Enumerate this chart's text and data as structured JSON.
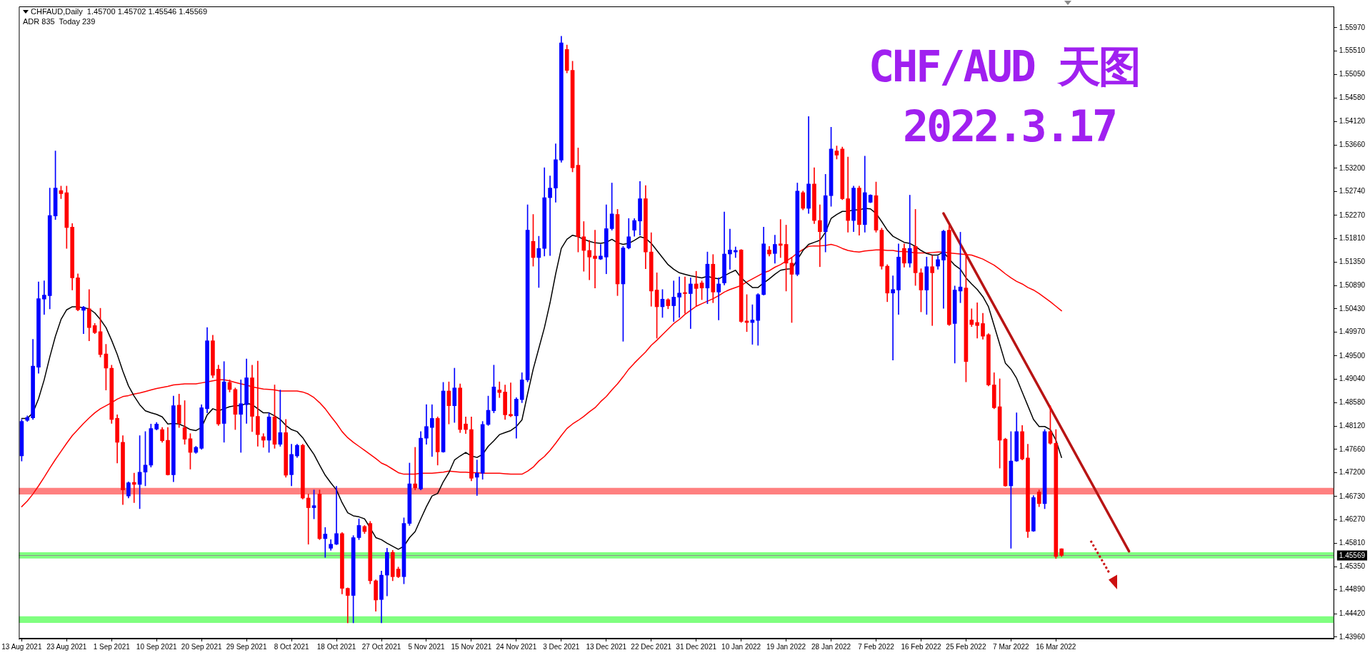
{
  "chart_data": {
    "type": "candlestick",
    "title": "CHF/AUD 天图",
    "subtitle": "2022.3.17",
    "annotations": [
      "CHFAUD,Daily  1.45700 1.45702 1.45546 1.45569",
      "ADR 835  Today 239"
    ],
    "categories": [
      "13 Aug 2021",
      null,
      null,
      null,
      null,
      null,
      null,
      null,
      "23 Aug 2021",
      null,
      null,
      null,
      null,
      null,
      null,
      null,
      "1 Sep 2021",
      null,
      null,
      null,
      null,
      null,
      null,
      null,
      "10 Sep 2021",
      null,
      null,
      null,
      null,
      null,
      null,
      null,
      "20 Sep 2021",
      null,
      null,
      null,
      null,
      null,
      null,
      null,
      "29 Sep 2021",
      null,
      null,
      null,
      null,
      null,
      null,
      null,
      "8 Oct 2021",
      null,
      null,
      null,
      null,
      null,
      null,
      null,
      "18 Oct 2021",
      null,
      null,
      null,
      null,
      null,
      null,
      null,
      "27 Oct 2021",
      null,
      null,
      null,
      null,
      null,
      null,
      null,
      "5 Nov 2021",
      null,
      null,
      null,
      null,
      null,
      null,
      null,
      "15 Nov 2021",
      null,
      null,
      null,
      null,
      null,
      null,
      null,
      "24 Nov 2021",
      null,
      null,
      null,
      null,
      null,
      null,
      null,
      "3 Dec 2021",
      null,
      null,
      null,
      null,
      null,
      null,
      null,
      "13 Dec 2021",
      null,
      null,
      null,
      null,
      null,
      null,
      null,
      "22 Dec 2021",
      null,
      null,
      null,
      null,
      null,
      null,
      null,
      "31 Dec 2021",
      null,
      null,
      null,
      null,
      null,
      null,
      null,
      "10 Jan 2022",
      null,
      null,
      null,
      null,
      null,
      null,
      null,
      "19 Jan 2022",
      null,
      null,
      null,
      null,
      null,
      null,
      null,
      "28 Jan 2022",
      null,
      null,
      null,
      null,
      null,
      null,
      null,
      "7 Feb 2022",
      null,
      null,
      null,
      null,
      null,
      null,
      null,
      "16 Feb 2022",
      null,
      null,
      null,
      null,
      null,
      null,
      null,
      "25 Feb 2022",
      null,
      null,
      null,
      null,
      null,
      null,
      null,
      "7 Mar 2022",
      null,
      null,
      null,
      null,
      null,
      null,
      null,
      "16 Mar 2022",
      null,
      null,
      null,
      null,
      null,
      null,
      null,
      null,
      null,
      null,
      null,
      null,
      null,
      null,
      null,
      null,
      null,
      null,
      null,
      null,
      null,
      null,
      null,
      null,
      null,
      null,
      null,
      null,
      null,
      null,
      null,
      null,
      null,
      null,
      null,
      null,
      null,
      null,
      null,
      null,
      null,
      null,
      null,
      null,
      null,
      null,
      null,
      null,
      null
    ],
    "ohlc": [
      [
        1.4753,
        1.4825,
        1.4743,
        1.4821
      ],
      [
        1.4823,
        1.4832,
        1.4821,
        1.4829
      ],
      [
        1.4828,
        1.4983,
        1.4825,
        1.493
      ],
      [
        1.4928,
        1.5096,
        1.4916,
        1.5063
      ],
      [
        1.5062,
        1.5098,
        1.5032,
        1.507
      ],
      [
        1.5069,
        1.5281,
        1.5043,
        1.5227
      ],
      [
        1.5226,
        1.5354,
        1.5219,
        1.5281
      ],
      [
        1.5276,
        1.5285,
        1.526,
        1.527
      ],
      [
        1.5272,
        1.5285,
        1.5162,
        1.5203
      ],
      [
        1.5204,
        1.5211,
        1.508,
        1.5104
      ],
      [
        1.5104,
        1.5112,
        1.5039,
        1.5041
      ],
      [
        1.504,
        1.5048,
        1.4994,
        1.5046
      ],
      [
        1.5043,
        1.5081,
        1.498,
        1.5006
      ],
      [
        1.501,
        1.5014,
        1.4994,
        1.4996
      ],
      [
        1.4998,
        1.5044,
        1.4948,
        1.4953
      ],
      [
        1.4954,
        1.4973,
        1.4883,
        1.4926
      ],
      [
        1.4926,
        1.4932,
        1.4817,
        1.4825
      ],
      [
        1.4827,
        1.4834,
        1.4739,
        1.478
      ],
      [
        1.478,
        1.4793,
        1.4657,
        1.4686
      ],
      [
        1.4674,
        1.4702,
        1.467,
        1.47
      ],
      [
        1.4701,
        1.4719,
        1.4661,
        1.4697
      ],
      [
        1.4697,
        1.4793,
        1.4649,
        1.4721
      ],
      [
        1.4721,
        1.4801,
        1.4694,
        1.4735
      ],
      [
        1.4735,
        1.4816,
        1.4731,
        1.4807
      ],
      [
        1.4806,
        1.4819,
        1.4804,
        1.4816
      ],
      [
        1.4805,
        1.4809,
        1.478,
        1.4783
      ],
      [
        1.4784,
        1.4809,
        1.4715,
        1.4716
      ],
      [
        1.4716,
        1.4871,
        1.4702,
        1.4852
      ],
      [
        1.4853,
        1.4875,
        1.4809,
        1.4817
      ],
      [
        1.4809,
        1.4862,
        1.4776,
        1.4786
      ],
      [
        1.4787,
        1.4797,
        1.4727,
        1.476
      ],
      [
        1.476,
        1.4772,
        1.4758,
        1.477
      ],
      [
        1.4768,
        1.4854,
        1.4766,
        1.4848
      ],
      [
        1.4846,
        1.5006,
        1.4838,
        1.498
      ],
      [
        1.498,
        1.4991,
        1.4907,
        1.4912
      ],
      [
        1.4924,
        1.4932,
        1.4813,
        1.4816
      ],
      [
        1.4817,
        1.4939,
        1.478,
        1.4899
      ],
      [
        1.4898,
        1.4903,
        1.4879,
        1.4884
      ],
      [
        1.4884,
        1.4887,
        1.4805,
        1.4835
      ],
      [
        1.4835,
        1.4903,
        1.476,
        1.4856
      ],
      [
        1.4854,
        1.4944,
        1.4817,
        1.4907
      ],
      [
        1.4907,
        1.4932,
        1.4801,
        1.4831
      ],
      [
        1.4831,
        1.494,
        1.4772,
        1.4795
      ],
      [
        1.4791,
        1.4797,
        1.477,
        1.4784
      ],
      [
        1.4784,
        1.4838,
        1.476,
        1.483
      ],
      [
        1.483,
        1.4893,
        1.4768,
        1.4776
      ],
      [
        1.4776,
        1.4883,
        1.4772,
        1.4799
      ],
      [
        1.4799,
        1.4825,
        1.4711,
        1.4715
      ],
      [
        1.4716,
        1.4776,
        1.4694,
        1.4756
      ],
      [
        1.4753,
        1.4776,
        1.475,
        1.4774
      ],
      [
        1.4774,
        1.4776,
        1.4668,
        1.467
      ],
      [
        1.467,
        1.4678,
        1.4579,
        1.4651
      ],
      [
        1.4651,
        1.4686,
        1.4629,
        1.4655
      ],
      [
        1.4678,
        1.4686,
        1.4588,
        1.459
      ],
      [
        1.459,
        1.4612,
        1.4553,
        1.4599
      ],
      [
        1.4571,
        1.4588,
        1.4567,
        1.4579
      ],
      [
        1.4579,
        1.4693,
        1.4578,
        1.46
      ],
      [
        1.46,
        1.4602,
        1.4481,
        1.4492
      ],
      [
        1.4492,
        1.4493,
        1.4424,
        1.4478
      ],
      [
        1.4478,
        1.4596,
        1.4424,
        1.4592
      ],
      [
        1.4592,
        1.4629,
        1.4588,
        1.4616
      ],
      [
        1.4614,
        1.4616,
        1.46,
        1.4604
      ],
      [
        1.462,
        1.4624,
        1.4501,
        1.4507
      ],
      [
        1.4507,
        1.4509,
        1.4447,
        1.4469
      ],
      [
        1.447,
        1.4526,
        1.4424,
        1.4518
      ],
      [
        1.4518,
        1.4571,
        1.4477,
        1.4563
      ],
      [
        1.4563,
        1.4567,
        1.4507,
        1.4515
      ],
      [
        1.453,
        1.4534,
        1.4513,
        1.4515
      ],
      [
        1.4515,
        1.4631,
        1.4501,
        1.462
      ],
      [
        1.462,
        1.4739,
        1.4616,
        1.4698
      ],
      [
        1.4698,
        1.477,
        1.4686,
        1.469
      ],
      [
        1.4688,
        1.4801,
        1.4686,
        1.4788
      ],
      [
        1.4788,
        1.4854,
        1.4776,
        1.4811
      ],
      [
        1.4809,
        1.4854,
        1.4752,
        1.4827
      ],
      [
        1.4827,
        1.483,
        1.4735,
        1.4761
      ],
      [
        1.4761,
        1.4898,
        1.476,
        1.4881
      ],
      [
        1.4881,
        1.4899,
        1.4816,
        1.4852
      ],
      [
        1.4852,
        1.4926,
        1.4819,
        1.4887
      ],
      [
        1.4887,
        1.4895,
        1.4799,
        1.4805
      ],
      [
        1.4816,
        1.483,
        1.4797,
        1.4805
      ],
      [
        1.4805,
        1.483,
        1.4704,
        1.4709
      ],
      [
        1.4711,
        1.4745,
        1.4675,
        1.4719
      ],
      [
        1.4719,
        1.4821,
        1.4707,
        1.4815
      ],
      [
        1.4815,
        1.4871,
        1.4813,
        1.4843
      ],
      [
        1.4842,
        1.4932,
        1.4838,
        1.4889
      ],
      [
        1.4883,
        1.4899,
        1.4868,
        1.4878
      ],
      [
        1.4879,
        1.4893,
        1.4825,
        1.4834
      ],
      [
        1.4835,
        1.4897,
        1.483,
        1.4832
      ],
      [
        1.4832,
        1.4868,
        1.4788,
        1.4865
      ],
      [
        1.4864,
        1.4917,
        1.4858,
        1.4903
      ],
      [
        1.4903,
        1.5248,
        1.4899,
        1.5198
      ],
      [
        1.5176,
        1.5229,
        1.5127,
        1.5144
      ],
      [
        1.5144,
        1.5186,
        1.5085,
        1.5162
      ],
      [
        1.5162,
        1.5321,
        1.5147,
        1.5262
      ],
      [
        1.5262,
        1.5305,
        1.5148,
        1.5281
      ],
      [
        1.5281,
        1.5368,
        1.5253,
        1.5337
      ],
      [
        1.5336,
        1.558,
        1.5332,
        1.5567
      ],
      [
        1.5554,
        1.5563,
        1.5508,
        1.5513
      ],
      [
        1.5513,
        1.5531,
        1.5313,
        1.5321
      ],
      [
        1.5326,
        1.536,
        1.5155,
        1.5185
      ],
      [
        1.5185,
        1.5215,
        1.5117,
        1.5158
      ],
      [
        1.5158,
        1.5178,
        1.51,
        1.5145
      ],
      [
        1.5147,
        1.5198,
        1.5084,
        1.5142
      ],
      [
        1.5141,
        1.517,
        1.514,
        1.5147
      ],
      [
        1.5145,
        1.5248,
        1.5112,
        1.5201
      ],
      [
        1.5201,
        1.5291,
        1.5198,
        1.523
      ],
      [
        1.5229,
        1.5239,
        1.5069,
        1.5092
      ],
      [
        1.5092,
        1.5166,
        1.4979,
        1.5163
      ],
      [
        1.5163,
        1.5221,
        1.5161,
        1.5185
      ],
      [
        1.5198,
        1.5221,
        1.5186,
        1.5217
      ],
      [
        1.5216,
        1.5294,
        1.5188,
        1.526
      ],
      [
        1.526,
        1.5286,
        1.5122,
        1.5155
      ],
      [
        1.5155,
        1.5193,
        1.5048,
        1.5078
      ],
      [
        1.508,
        1.5114,
        1.4985,
        1.5047
      ],
      [
        1.5047,
        1.5081,
        1.5026,
        1.5062
      ],
      [
        1.5061,
        1.5063,
        1.5043,
        1.5049
      ],
      [
        1.5049,
        1.5098,
        1.5018,
        1.5066
      ],
      [
        1.5066,
        1.5106,
        1.5026,
        1.5074
      ],
      [
        1.5075,
        1.5106,
        1.5034,
        1.5073
      ],
      [
        1.5073,
        1.5104,
        1.5004,
        1.5092
      ],
      [
        1.5092,
        1.5117,
        1.5048,
        1.5083
      ],
      [
        1.5094,
        1.5098,
        1.5061,
        1.5084
      ],
      [
        1.5084,
        1.5155,
        1.5053,
        1.5131
      ],
      [
        1.5131,
        1.515,
        1.5055,
        1.5076
      ],
      [
        1.5076,
        1.5104,
        1.5021,
        1.5092
      ],
      [
        1.5094,
        1.5234,
        1.509,
        1.5151
      ],
      [
        1.5151,
        1.52,
        1.5121,
        1.5159
      ],
      [
        1.5155,
        1.5165,
        1.5144,
        1.5158
      ],
      [
        1.5159,
        1.516,
        1.5016,
        1.5018
      ],
      [
        1.5019,
        1.5071,
        1.4998,
        1.5016
      ],
      [
        1.5016,
        1.5051,
        1.4973,
        1.5021
      ],
      [
        1.502,
        1.5073,
        1.4971,
        1.5071
      ],
      [
        1.5071,
        1.5204,
        1.507,
        1.5171
      ],
      [
        1.5159,
        1.5166,
        1.5147,
        1.5151
      ],
      [
        1.5152,
        1.5188,
        1.5133,
        1.517
      ],
      [
        1.5171,
        1.5219,
        1.5144,
        1.5168
      ],
      [
        1.517,
        1.5208,
        1.5078,
        1.5133
      ],
      [
        1.5133,
        1.5145,
        1.5016,
        1.5111
      ],
      [
        1.5111,
        1.5291,
        1.5108,
        1.5275
      ],
      [
        1.5272,
        1.5275,
        1.5238,
        1.5241
      ],
      [
        1.5241,
        1.5422,
        1.5231,
        1.5289
      ],
      [
        1.5289,
        1.5321,
        1.5211,
        1.5217
      ],
      [
        1.5217,
        1.5248,
        1.5126,
        1.5195
      ],
      [
        1.5195,
        1.5308,
        1.5155,
        1.5266
      ],
      [
        1.5266,
        1.5401,
        1.5245,
        1.5358
      ],
      [
        1.5354,
        1.5364,
        1.5338,
        1.5346
      ],
      [
        1.5358,
        1.5362,
        1.5258,
        1.526
      ],
      [
        1.526,
        1.5342,
        1.5194,
        1.5217
      ],
      [
        1.5217,
        1.5285,
        1.5195,
        1.5281
      ],
      [
        1.5281,
        1.5285,
        1.5188,
        1.5209
      ],
      [
        1.5209,
        1.5344,
        1.5194,
        1.5272
      ],
      [
        1.5253,
        1.5268,
        1.5252,
        1.5267
      ],
      [
        1.5266,
        1.5293,
        1.5194,
        1.5198
      ],
      [
        1.5198,
        1.5202,
        1.5121,
        1.5127
      ],
      [
        1.5127,
        1.513,
        1.5057,
        1.5074
      ],
      [
        1.5074,
        1.5108,
        1.4942,
        1.5081
      ],
      [
        1.508,
        1.5171,
        1.5032,
        1.5145
      ],
      [
        1.5162,
        1.5171,
        1.5125,
        1.5133
      ],
      [
        1.5133,
        1.5267,
        1.5125,
        1.5162
      ],
      [
        1.5166,
        1.5239,
        1.5089,
        1.5114
      ],
      [
        1.5114,
        1.5122,
        1.5037,
        1.508
      ],
      [
        1.508,
        1.5145,
        1.5032,
        1.5126
      ],
      [
        1.5126,
        1.5148,
        1.501,
        1.5114
      ],
      [
        1.5127,
        1.5147,
        1.5121,
        1.514
      ],
      [
        1.5139,
        1.5198,
        1.5044,
        1.5196
      ],
      [
        1.5198,
        1.5207,
        1.501,
        1.5012
      ],
      [
        1.5014,
        1.5088,
        1.4936,
        1.508
      ],
      [
        1.5078,
        1.5194,
        1.5055,
        1.5086
      ],
      [
        1.5084,
        1.5153,
        1.4899,
        1.4939
      ],
      [
        1.5021,
        1.5043,
        1.5008,
        1.5012
      ],
      [
        1.5016,
        1.5055,
        1.4985,
        1.501
      ],
      [
        1.5014,
        1.5034,
        1.4983,
        1.4989
      ],
      [
        1.4992,
        1.4994,
        1.4891,
        1.4893
      ],
      [
        1.4893,
        1.4917,
        1.4846,
        1.4848
      ],
      [
        1.485,
        1.4905,
        1.4729,
        1.4784
      ],
      [
        1.4786,
        1.4788,
        1.4693,
        1.4694
      ],
      [
        1.4694,
        1.4801,
        1.4571,
        1.4743
      ],
      [
        1.4743,
        1.4838,
        1.4742,
        1.4801
      ],
      [
        1.4801,
        1.4813,
        1.4745,
        1.4747
      ],
      [
        1.4749,
        1.4776,
        1.4592,
        1.4604
      ],
      [
        1.4605,
        1.4675,
        1.4604,
        1.4671
      ],
      [
        1.4682,
        1.4686,
        1.4653,
        1.4659
      ],
      [
        1.4659,
        1.4805,
        1.4649,
        1.4801
      ],
      [
        1.4801,
        1.4852,
        1.4776,
        1.4778
      ],
      [
        1.4778,
        1.4805,
        1.4551,
        1.4555
      ],
      [
        1.457,
        1.45702,
        1.45546,
        1.45569
      ],
      null,
      null,
      null,
      null,
      null,
      null,
      null,
      null,
      null,
      null,
      null,
      null,
      null,
      null,
      null,
      null,
      null,
      null,
      null,
      null,
      null,
      null,
      null,
      null,
      null,
      null,
      null,
      null,
      null,
      null,
      null,
      null,
      null,
      null,
      null,
      null,
      null,
      null,
      null,
      null,
      null,
      null,
      null,
      null,
      null,
      null,
      null,
      null
    ],
    "colors": [
      "#0000ff",
      "#0000ff",
      "#0000ff",
      "#0000ff",
      "#0000ff",
      "#0000ff",
      "#0000ff",
      "#ff0000",
      "#ff0000",
      "#ff0000",
      "#ff0000",
      "#0000ff",
      "#ff0000",
      "#ff0000",
      "#ff0000",
      "#ff0000",
      "#ff0000",
      "#ff0000",
      "#ff0000",
      "#0000ff",
      "#ff0000",
      "#0000ff",
      "#0000ff",
      "#0000ff",
      "#0000ff",
      "#ff0000",
      "#ff0000",
      "#0000ff",
      "#ff0000",
      "#ff0000",
      "#ff0000",
      "#0000ff",
      "#0000ff",
      "#0000ff",
      "#ff0000",
      "#ff0000",
      "#0000ff",
      "#ff0000",
      "#ff0000",
      "#0000ff",
      "#0000ff",
      "#ff0000",
      "#ff0000",
      "#ff0000",
      "#0000ff",
      "#ff0000",
      "#0000ff",
      "#ff0000",
      "#0000ff",
      "#0000ff",
      "#ff0000",
      "#ff0000",
      "#0000ff",
      "#ff0000",
      "#0000ff",
      "#0000ff",
      "#0000ff",
      "#ff0000",
      "#ff0000",
      "#0000ff",
      "#0000ff",
      "#ff0000",
      "#ff0000",
      "#ff0000",
      "#0000ff",
      "#0000ff",
      "#ff0000",
      "#ff0000",
      "#0000ff",
      "#0000ff",
      "#ff0000",
      "#0000ff",
      "#0000ff",
      "#0000ff",
      "#ff0000",
      "#0000ff",
      "#ff0000",
      "#0000ff",
      "#ff0000",
      "#ff0000",
      "#ff0000",
      "#0000ff",
      "#0000ff",
      "#0000ff",
      "#0000ff",
      "#ff0000",
      "#ff0000",
      "#ff0000",
      "#0000ff",
      "#0000ff",
      "#0000ff",
      "#ff0000",
      "#0000ff",
      "#0000ff",
      "#0000ff",
      "#0000ff",
      "#0000ff",
      "#ff0000",
      "#ff0000",
      "#ff0000",
      "#ff0000",
      "#ff0000",
      "#ff0000",
      "#0000ff",
      "#0000ff",
      "#0000ff",
      "#ff0000",
      "#0000ff",
      "#0000ff",
      "#0000ff",
      "#0000ff",
      "#ff0000",
      "#ff0000",
      "#ff0000",
      "#0000ff",
      "#ff0000",
      "#0000ff",
      "#0000ff",
      "#ff0000",
      "#0000ff",
      "#ff0000",
      "#ff0000",
      "#0000ff",
      "#ff0000",
      "#0000ff",
      "#0000ff",
      "#0000ff",
      "#0000ff",
      "#ff0000",
      "#ff0000",
      "#0000ff",
      "#0000ff",
      "#0000ff",
      "#ff0000",
      "#0000ff",
      "#ff0000",
      "#ff0000",
      "#ff0000",
      "#0000ff",
      "#ff0000",
      "#0000ff",
      "#ff0000",
      "#ff0000",
      "#0000ff",
      "#0000ff",
      "#ff0000",
      "#ff0000",
      "#ff0000",
      "#0000ff",
      "#ff0000",
      "#0000ff",
      "#0000ff",
      "#ff0000",
      "#ff0000",
      "#ff0000",
      "#0000ff",
      "#0000ff",
      "#ff0000",
      "#0000ff",
      "#ff0000",
      "#ff0000",
      "#0000ff",
      "#ff0000",
      "#0000ff",
      "#0000ff",
      "#ff0000",
      "#0000ff",
      "#0000ff",
      "#ff0000",
      "#ff0000",
      "#ff0000",
      "#ff0000",
      "#ff0000",
      "#ff0000",
      "#ff0000",
      "#ff0000",
      "#0000ff",
      "#0000ff",
      "#ff0000",
      "#ff0000",
      "#0000ff",
      "#ff0000",
      "#0000ff",
      "#ff0000",
      "#ff0000",
      "#ff0000",
      null,
      null,
      null,
      null,
      null,
      null,
      null,
      null,
      null,
      null,
      null,
      null,
      null,
      null,
      null,
      null,
      null,
      null,
      null,
      null,
      null,
      null,
      null,
      null,
      null,
      null,
      null,
      null,
      null,
      null,
      null,
      null,
      null,
      null,
      null,
      null,
      null,
      null,
      null,
      null,
      null,
      null,
      null,
      null,
      null,
      null,
      null,
      null
    ],
    "series": [
      {
        "type": "line",
        "color": "#000000",
        "values": [
          1.4827,
          1.4827,
          1.4838,
          1.4866,
          1.4903,
          1.4948,
          1.4989,
          1.5022,
          1.5041,
          1.5047,
          1.5047,
          1.5045,
          1.5043,
          1.5035,
          1.5022,
          1.5006,
          1.4981,
          1.4953,
          1.492,
          1.4891,
          1.4871,
          1.4854,
          1.4842,
          1.4838,
          1.4835,
          1.483,
          1.4816,
          1.4817,
          1.4816,
          1.4811,
          1.4805,
          1.4803,
          1.4809,
          1.4834,
          1.4846,
          1.4842,
          1.4846,
          1.485,
          1.4852,
          1.4852,
          1.4857,
          1.4854,
          1.4846,
          1.4838,
          1.4838,
          1.4832,
          1.4825,
          1.4813,
          1.4805,
          1.4801,
          1.4789,
          1.4772,
          1.4756,
          1.4735,
          1.4715,
          1.47,
          1.4686,
          1.4661,
          1.4641,
          1.4635,
          1.4633,
          1.4629,
          1.4611,
          1.4592,
          1.4588,
          1.4581,
          1.4575,
          1.4569,
          1.4575,
          1.4592,
          1.4604,
          1.4629,
          1.4653,
          1.4674,
          1.4679,
          1.4702,
          1.472,
          1.4745,
          1.4753,
          1.476,
          1.4753,
          1.475,
          1.4756,
          1.4772,
          1.4783,
          1.4795,
          1.4799,
          1.4803,
          1.4811,
          1.4824,
          1.4875,
          1.4924,
          1.4965,
          1.5006,
          1.5055,
          1.5112,
          1.5162,
          1.518,
          1.5188,
          1.5185,
          1.518,
          1.5176,
          1.5173,
          1.5172,
          1.5174,
          1.518,
          1.5173,
          1.517,
          1.5172,
          1.5178,
          1.5185,
          1.5182,
          1.5172,
          1.5158,
          1.5144,
          1.513,
          1.5121,
          1.5114,
          1.5111,
          1.5108,
          1.5106,
          1.5104,
          1.5107,
          1.5104,
          1.5102,
          1.5108,
          1.5114,
          1.5119,
          1.5104,
          1.5094,
          1.5085,
          1.5085,
          1.5094,
          1.5102,
          1.5111,
          1.5119,
          1.5121,
          1.5122,
          null,
          1.5158,
          1.517,
          1.5174,
          1.5178,
          1.5194,
          1.5221,
          1.5229,
          1.5235,
          1.5235,
          1.5238,
          1.5238,
          1.5241,
          1.524,
          1.5231,
          1.5215,
          1.5198,
          1.5186,
          1.518,
          1.5174,
          1.5172,
          1.5166,
          1.5158,
          1.5152,
          1.5149,
          1.5149,
          1.5155,
          1.5141,
          1.5129,
          1.5121,
          1.5104,
          1.5092,
          1.5081,
          1.5067,
          1.5047,
          1.501,
          1.4973,
          1.4936,
          1.4924,
          1.4906,
          1.4879,
          1.4852,
          1.4825,
          1.4811,
          1.4811,
          1.4805,
          1.4784,
          1.475,
          null,
          null,
          null,
          null,
          null,
          null,
          null,
          null,
          null,
          null,
          null,
          null,
          null,
          null,
          null,
          null,
          null,
          null,
          null,
          null,
          null,
          null,
          null,
          null,
          null,
          null,
          null,
          null,
          null,
          null,
          null,
          null,
          null,
          null,
          null,
          null,
          null,
          null,
          null,
          null,
          null,
          null,
          null,
          null,
          null,
          null,
          null,
          null
        ]
      },
      {
        "type": "line",
        "color": "#ff0000",
        "values": [
          1.4653,
          1.4664,
          1.4678,
          1.4694,
          1.4711,
          1.4729,
          1.4746,
          1.4762,
          1.4778,
          1.4793,
          1.4805,
          1.4817,
          1.4828,
          1.4838,
          1.4846,
          1.4852,
          1.4858,
          1.4865,
          1.487,
          1.4872,
          1.4875,
          1.4877,
          1.488,
          1.4883,
          1.4886,
          1.4888,
          1.489,
          1.4893,
          1.4894,
          1.4895,
          1.4895,
          1.4895,
          1.4897,
          1.4899,
          1.4901,
          1.4903,
          1.4903,
          1.4901,
          1.4898,
          1.4895,
          1.4893,
          1.4889,
          1.4887,
          1.4885,
          1.4884,
          1.4883,
          1.4881,
          1.4881,
          1.4881,
          1.4881,
          1.4879,
          1.4875,
          1.4868,
          1.4858,
          1.4846,
          1.4831,
          1.4817,
          1.4801,
          1.4789,
          1.478,
          1.4772,
          1.4764,
          1.4756,
          1.4748,
          1.4739,
          1.4734,
          1.4727,
          1.472,
          1.4717,
          1.4717,
          1.4717,
          1.4719,
          1.4719,
          1.4719,
          1.472,
          1.4721,
          1.4723,
          1.4722,
          1.4721,
          1.4721,
          1.472,
          1.472,
          1.4719,
          1.4719,
          1.4719,
          1.4719,
          1.4718,
          1.4717,
          1.4717,
          1.4717,
          1.4723,
          1.4731,
          1.4743,
          1.4752,
          1.4764,
          1.4778,
          1.4793,
          1.4807,
          1.4816,
          1.4823,
          1.4831,
          1.484,
          1.4848,
          1.486,
          1.487,
          1.4883,
          1.4895,
          1.4909,
          1.4924,
          1.4936,
          1.4947,
          1.4958,
          1.4971,
          1.4981,
          1.4992,
          1.5003,
          1.5014,
          1.5022,
          1.5032,
          1.504,
          1.5048,
          1.5053,
          1.5058,
          1.5063,
          1.5069,
          1.5076,
          1.5081,
          1.5085,
          1.5089,
          1.5096,
          1.5102,
          1.5108,
          1.5114,
          1.5118,
          1.5125,
          1.513,
          1.5137,
          1.5144,
          1.5153,
          1.516,
          1.5166,
          1.5167,
          1.5167,
          1.5168,
          1.517,
          1.5167,
          1.5162,
          1.5158,
          1.5156,
          1.5155,
          1.5157,
          1.5158,
          1.5159,
          1.5159,
          1.5158,
          1.5158,
          1.5156,
          1.5156,
          1.5155,
          1.5153,
          1.5153,
          1.5153,
          1.5154,
          1.5155,
          1.5155,
          1.5153,
          1.5152,
          1.5151,
          1.515,
          1.5149,
          1.5145,
          1.5141,
          1.5135,
          1.5129,
          1.5121,
          1.5112,
          1.5104,
          1.5097,
          1.5092,
          1.5085,
          1.508,
          1.5073,
          1.5065,
          1.5057,
          1.5048,
          1.5039,
          null,
          null,
          null,
          null,
          null,
          null,
          null,
          null,
          null,
          null,
          null,
          null,
          null,
          null,
          null,
          null,
          null,
          null,
          null,
          null,
          null,
          null,
          null,
          null,
          null,
          null,
          null,
          null,
          null,
          null,
          null,
          null,
          null,
          null,
          null,
          null,
          null,
          null,
          null,
          null,
          null,
          null,
          null,
          null,
          null,
          null,
          null,
          null
        ]
      },
      {
        "type": "line",
        "color": "#b81414",
        "values": [
          null,
          null,
          null,
          null,
          null,
          null,
          null,
          null,
          null,
          null,
          null,
          null,
          null,
          null,
          null,
          null,
          null,
          null,
          null,
          null,
          null,
          null,
          null,
          null,
          null,
          null,
          null,
          null,
          null,
          null,
          null,
          null,
          null,
          null,
          null,
          null,
          null,
          null,
          null,
          null,
          null,
          null,
          null,
          null,
          null,
          null,
          null,
          null,
          null,
          null,
          null,
          null,
          null,
          null,
          null,
          null,
          null,
          null,
          null,
          null,
          null,
          null,
          null,
          null,
          null,
          null,
          null,
          null,
          null,
          null,
          null,
          null,
          null,
          null,
          null,
          null,
          null,
          null,
          null,
          null,
          null,
          null,
          null,
          null,
          null,
          null,
          null,
          null,
          null,
          null,
          null,
          null,
          null,
          null,
          null,
          null,
          null,
          null,
          null,
          null,
          null,
          null,
          null,
          null,
          null,
          null,
          null,
          null,
          null,
          null,
          null,
          null,
          null,
          null,
          null,
          null,
          null,
          null,
          null,
          null,
          null,
          null,
          null,
          null,
          null,
          null,
          null,
          null,
          null,
          null,
          null,
          null,
          null,
          null,
          null,
          null,
          null,
          null,
          null,
          null,
          null,
          null,
          null,
          null,
          null,
          null,
          null,
          null,
          null,
          null,
          null,
          null,
          null,
          null,
          null,
          null,
          null,
          null,
          null,
          null,
          null,
          null,
          null,
          null,
          1.5231,
          null,
          null,
          null,
          null,
          null,
          null,
          null,
          null,
          null,
          null,
          null,
          null,
          null,
          null,
          null,
          null,
          null,
          null,
          null,
          null,
          null,
          null,
          null,
          null,
          null,
          null,
          null,
          null,
          null,
          null,
          null,
          null,
          1.4565,
          null,
          null,
          null,
          null,
          null,
          null,
          null,
          null,
          null,
          null,
          null,
          null,
          null,
          null,
          null,
          null,
          null,
          null,
          null,
          null,
          null,
          null,
          null,
          null,
          null,
          null,
          null,
          null,
          null,
          null,
          null,
          null,
          null,
          null,
          null,
          null
        ]
      }
    ],
    "ylim": [
      1.4393,
      1.5639
    ],
    "yticks": [
      {
        "value": 1.5597,
        "label": "1.55970"
      },
      {
        "value": 1.5551,
        "label": "1.55510"
      },
      {
        "value": 1.5505,
        "label": "1.55050"
      },
      {
        "value": 1.5458,
        "label": "1.54580"
      },
      {
        "value": 1.5412,
        "label": "1.54120"
      },
      {
        "value": 1.5366,
        "label": "1.53660"
      },
      {
        "value": 1.532,
        "label": "1.53200"
      },
      {
        "value": 1.5274,
        "label": "1.52740"
      },
      {
        "value": 1.5227,
        "label": "1.52270"
      },
      {
        "value": 1.5181,
        "label": "1.51810"
      },
      {
        "value": 1.5135,
        "label": "1.51350"
      },
      {
        "value": 1.5089,
        "label": "1.50890"
      },
      {
        "value": 1.5043,
        "label": "1.50430"
      },
      {
        "value": 1.4997,
        "label": "1.49970"
      },
      {
        "value": 1.495,
        "label": "1.49500"
      },
      {
        "value": 1.4904,
        "label": "1.49040"
      },
      {
        "value": 1.4858,
        "label": "1.48580"
      },
      {
        "value": 1.4812,
        "label": "1.48120"
      },
      {
        "value": 1.4766,
        "label": "1.47660"
      },
      {
        "value": 1.472,
        "label": "1.47200"
      },
      {
        "value": 1.4673,
        "label": "1.46730"
      },
      {
        "value": 1.4627,
        "label": "1.46270"
      },
      {
        "value": 1.4581,
        "label": "1.45810"
      },
      {
        "value": 1.4535,
        "label": "1.45350"
      },
      {
        "value": 1.4489,
        "label": "1.44890"
      },
      {
        "value": 1.4442,
        "label": "1.44420"
      },
      {
        "value": 1.4396,
        "label": "1.43960"
      }
    ],
    "bands": [
      {
        "axis": "y",
        "from": 1.4677,
        "to": 1.469,
        "color": "#ff8080"
      },
      {
        "axis": "y",
        "from": 1.4551,
        "to": 1.4563,
        "color": "#80ff80"
      },
      {
        "axis": "y",
        "from": 1.4424,
        "to": 1.4437,
        "color": "#80ff80"
      }
    ],
    "ref_lines": [
      {
        "axis": "y",
        "value": 1.45569,
        "label": "1.45569",
        "color": "#909090"
      }
    ]
  }
}
